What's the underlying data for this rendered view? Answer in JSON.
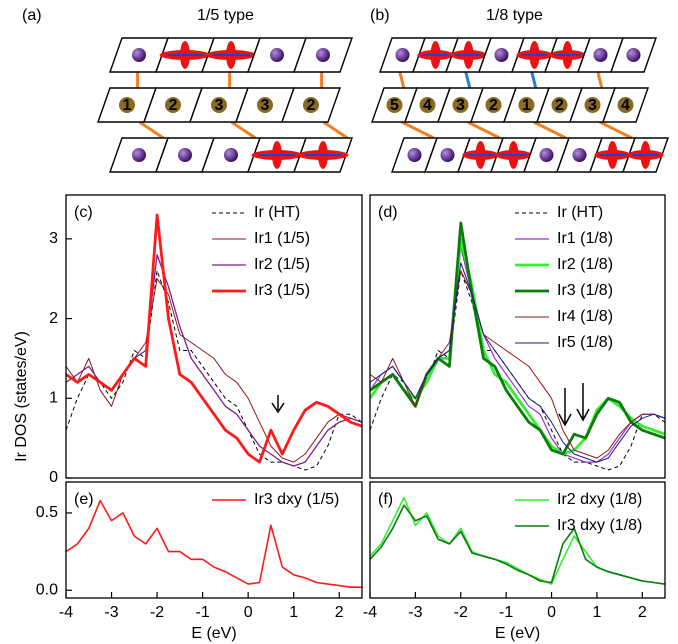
{
  "diagrams": [
    {
      "label": "(a)",
      "title": "1/5 type",
      "site_labels": [
        "1",
        "2",
        "3",
        "3",
        "2"
      ]
    },
    {
      "label": "(b)",
      "title": "1/8 type",
      "site_labels": [
        "5",
        "4",
        "3",
        "2",
        "1",
        "2",
        "3",
        "4"
      ]
    }
  ],
  "chart_data": [
    {
      "type": "line",
      "label": "(c)",
      "ylabel": "Ir DOS (states/eV)",
      "legend": "upper right",
      "x": [
        -4,
        -3.75,
        -3.5,
        -3.25,
        -3,
        -2.75,
        -2.5,
        -2.25,
        -2,
        -1.75,
        -1.5,
        -1.25,
        -1,
        -0.75,
        -0.5,
        -0.25,
        0,
        0.25,
        0.5,
        0.75,
        1,
        1.25,
        1.5,
        1.75,
        2,
        2.25,
        2.5
      ],
      "xlim": [
        -4,
        2.5
      ],
      "ylim": [
        0,
        3.55
      ],
      "yticks": [
        0,
        1,
        2,
        3
      ],
      "series": [
        {
          "name": "Ir (HT)",
          "color": "#000000",
          "dashed": true,
          "linewidth": 1,
          "values": [
            0.6,
            1.0,
            1.3,
            1.2,
            1.0,
            1.2,
            1.6,
            1.5,
            2.6,
            2.2,
            1.6,
            1.6,
            1.4,
            1.2,
            1.0,
            0.9,
            0.6,
            0.3,
            0.2,
            0.2,
            0.15,
            0.1,
            0.15,
            0.4,
            0.8,
            0.8,
            0.7
          ]
        },
        {
          "name": "Ir1 (1/5)",
          "color": "#8b1a1a",
          "linewidth": 1,
          "values": [
            1.4,
            1.2,
            1.5,
            1.1,
            0.9,
            1.3,
            1.5,
            1.7,
            2.5,
            2.3,
            1.8,
            1.7,
            1.6,
            1.5,
            1.3,
            1.2,
            1.0,
            0.7,
            0.4,
            0.25,
            0.2,
            0.3,
            0.5,
            0.7,
            0.8,
            0.75,
            0.7
          ]
        },
        {
          "name": "Ir2 (1/5)",
          "color": "#7b1f8c",
          "linewidth": 1.3,
          "values": [
            1.2,
            1.3,
            1.4,
            1.2,
            1.1,
            1.3,
            1.5,
            1.6,
            2.8,
            2.4,
            1.9,
            1.5,
            1.3,
            1.1,
            0.9,
            0.8,
            0.6,
            0.4,
            0.3,
            0.2,
            0.15,
            0.2,
            0.4,
            0.6,
            0.7,
            0.75,
            0.7
          ]
        },
        {
          "name": "Ir3 (1/5)",
          "color": "#ff1a1a",
          "linewidth": 2.8,
          "values": [
            1.3,
            1.2,
            1.3,
            1.2,
            1.1,
            1.3,
            1.5,
            1.4,
            3.3,
            2.0,
            1.3,
            1.2,
            1.0,
            0.8,
            0.6,
            0.5,
            0.3,
            0.2,
            0.6,
            0.3,
            0.6,
            0.85,
            0.95,
            0.9,
            0.8,
            0.7,
            0.65
          ]
        }
      ]
    },
    {
      "type": "line",
      "label": "(d)",
      "legend": "upper right",
      "x": [
        -4,
        -3.75,
        -3.5,
        -3.25,
        -3,
        -2.75,
        -2.5,
        -2.25,
        -2,
        -1.75,
        -1.5,
        -1.25,
        -1,
        -0.75,
        -0.5,
        -0.25,
        0,
        0.25,
        0.5,
        0.75,
        1,
        1.25,
        1.5,
        1.75,
        2,
        2.25,
        2.5
      ],
      "xlim": [
        -4,
        2.5
      ],
      "ylim": [
        0,
        3.55
      ],
      "series": [
        {
          "name": "Ir (HT)",
          "color": "#000000",
          "dashed": true,
          "linewidth": 1,
          "values": [
            0.6,
            1.0,
            1.3,
            1.2,
            1.0,
            1.2,
            1.6,
            1.5,
            2.6,
            2.2,
            1.6,
            1.6,
            1.4,
            1.2,
            1.0,
            0.9,
            0.6,
            0.3,
            0.2,
            0.2,
            0.15,
            0.1,
            0.15,
            0.4,
            0.8,
            0.8,
            0.7
          ]
        },
        {
          "name": "Ir1 (1/8)",
          "color": "#9932cc",
          "linewidth": 1.2,
          "values": [
            1.1,
            1.3,
            1.4,
            1.2,
            1.0,
            1.3,
            1.5,
            1.6,
            2.9,
            2.3,
            1.8,
            1.5,
            1.3,
            1.1,
            0.9,
            0.8,
            0.5,
            0.3,
            0.25,
            0.2,
            0.2,
            0.3,
            0.5,
            0.7,
            0.8,
            0.8,
            0.75
          ]
        },
        {
          "name": "Ir2 (1/8)",
          "color": "#33ee33",
          "linewidth": 2.8,
          "values": [
            1.0,
            1.2,
            1.3,
            1.1,
            1.0,
            1.2,
            1.5,
            1.5,
            3.0,
            2.4,
            1.6,
            1.3,
            1.2,
            1.0,
            0.8,
            0.6,
            0.4,
            0.3,
            0.35,
            0.5,
            0.85,
            1.0,
            0.9,
            0.75,
            0.65,
            0.6,
            0.55
          ]
        },
        {
          "name": "Ir3 (1/8)",
          "color": "#0a7d0a",
          "linewidth": 2.8,
          "values": [
            1.1,
            1.2,
            1.3,
            1.1,
            0.9,
            1.3,
            1.5,
            1.4,
            3.2,
            2.3,
            1.5,
            1.4,
            1.1,
            0.9,
            0.7,
            0.6,
            0.35,
            0.3,
            0.55,
            0.5,
            0.8,
            1.0,
            0.95,
            0.7,
            0.6,
            0.55,
            0.5
          ]
        },
        {
          "name": "Ir4 (1/8)",
          "color": "#8b1a1a",
          "linewidth": 1,
          "values": [
            1.3,
            1.2,
            1.5,
            1.2,
            0.9,
            1.3,
            1.5,
            1.7,
            2.6,
            2.3,
            1.8,
            1.7,
            1.6,
            1.5,
            1.4,
            1.2,
            1.0,
            0.6,
            0.35,
            0.3,
            0.25,
            0.35,
            0.55,
            0.7,
            0.8,
            0.8,
            0.75
          ]
        },
        {
          "name": "Ir5 (1/8)",
          "color": "#1a1a8b",
          "linewidth": 1,
          "values": [
            1.2,
            1.3,
            1.4,
            1.2,
            1.0,
            1.3,
            1.5,
            1.6,
            2.7,
            2.3,
            1.8,
            1.6,
            1.4,
            1.2,
            1.0,
            0.9,
            0.7,
            0.45,
            0.3,
            0.25,
            0.2,
            0.25,
            0.45,
            0.65,
            0.75,
            0.8,
            0.75
          ]
        }
      ]
    },
    {
      "type": "line",
      "label": "(e)",
      "xlabel": "E (eV)",
      "legend": "upper right",
      "x": [
        -4,
        -3.75,
        -3.5,
        -3.25,
        -3,
        -2.75,
        -2.5,
        -2.25,
        -2,
        -1.75,
        -1.5,
        -1.25,
        -1,
        -0.75,
        -0.5,
        -0.25,
        0,
        0.25,
        0.5,
        0.75,
        1,
        1.25,
        1.5,
        1.75,
        2,
        2.25,
        2.5
      ],
      "xlim": [
        -4,
        2.5
      ],
      "xticks": [
        -4,
        -3,
        -2,
        -1,
        0,
        1,
        2
      ],
      "ylim": [
        -0.05,
        0.7
      ],
      "yticks": [
        {
          "value": 0,
          "label": "0.0"
        },
        0.5
      ],
      "series": [
        {
          "name": "Ir3 dxy (1/5)",
          "color": "#ff1a1a",
          "linewidth": 1.6,
          "values": [
            0.25,
            0.3,
            0.4,
            0.58,
            0.45,
            0.5,
            0.35,
            0.3,
            0.4,
            0.25,
            0.25,
            0.2,
            0.2,
            0.15,
            0.12,
            0.08,
            0.04,
            0.05,
            0.42,
            0.15,
            0.1,
            0.08,
            0.05,
            0.04,
            0.03,
            0.02,
            0.02
          ]
        }
      ]
    },
    {
      "type": "line",
      "label": "(f)",
      "xlabel": "E (eV)",
      "legend": "upper right",
      "x": [
        -4,
        -3.75,
        -3.5,
        -3.25,
        -3,
        -2.75,
        -2.5,
        -2.25,
        -2,
        -1.75,
        -1.5,
        -1.25,
        -1,
        -0.75,
        -0.5,
        -0.25,
        0,
        0.25,
        0.5,
        0.75,
        1,
        1.25,
        1.5,
        1.75,
        2,
        2.25,
        2.5
      ],
      "xlim": [
        -4,
        2.5
      ],
      "xticks": [
        -4,
        -3,
        -2,
        -1,
        0,
        1,
        2
      ],
      "ylim": [
        -0.05,
        0.7
      ],
      "series": [
        {
          "name": "Ir2 dxy (1/8)",
          "color": "#33ee33",
          "linewidth": 1.6,
          "values": [
            0.22,
            0.3,
            0.45,
            0.6,
            0.42,
            0.5,
            0.35,
            0.3,
            0.4,
            0.25,
            0.22,
            0.2,
            0.18,
            0.14,
            0.1,
            0.07,
            0.04,
            0.2,
            0.35,
            0.25,
            0.15,
            0.12,
            0.1,
            0.08,
            0.06,
            0.05,
            0.04
          ]
        },
        {
          "name": "Ir3 dxy (1/8)",
          "color": "#0a7d0a",
          "linewidth": 1.6,
          "values": [
            0.2,
            0.28,
            0.4,
            0.55,
            0.45,
            0.48,
            0.33,
            0.3,
            0.38,
            0.24,
            0.22,
            0.2,
            0.17,
            0.13,
            0.1,
            0.06,
            0.05,
            0.3,
            0.4,
            0.2,
            0.15,
            0.12,
            0.1,
            0.08,
            0.06,
            0.05,
            0.04
          ]
        }
      ]
    }
  ]
}
